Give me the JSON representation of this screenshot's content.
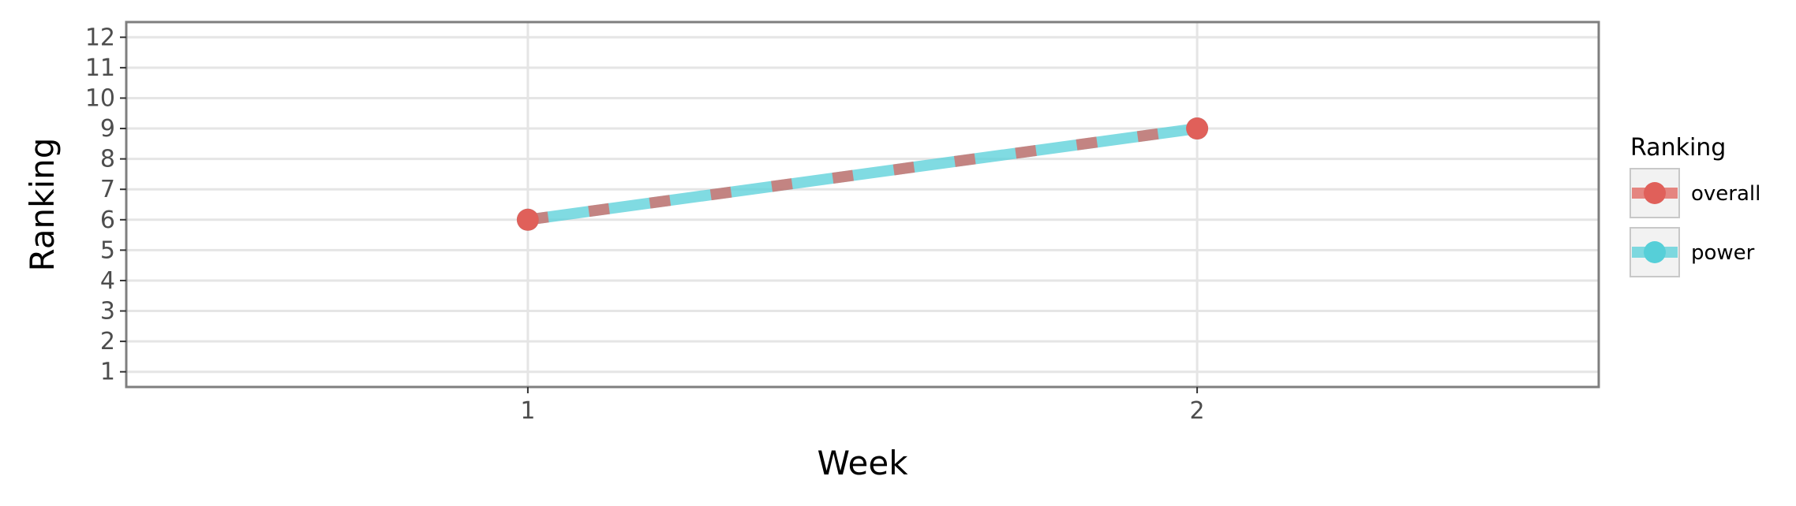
{
  "chart_data": {
    "type": "line",
    "title": "",
    "xlabel": "Week",
    "ylabel": "Ranking",
    "x_ticks": [
      "1",
      "2"
    ],
    "y_ticks": [
      "1",
      "2",
      "3",
      "4",
      "5",
      "6",
      "7",
      "8",
      "9",
      "10",
      "11",
      "12"
    ],
    "xlim": [
      0.4,
      2.6
    ],
    "ylim": [
      12.5,
      0.5
    ],
    "y_reversed": true,
    "grid": true,
    "legend": {
      "title": "Ranking",
      "placement": "right"
    },
    "series": [
      {
        "name": "overall",
        "color": "#e0605a",
        "linestyle": "dashed",
        "x": [
          1,
          2
        ],
        "y": [
          6,
          9
        ]
      },
      {
        "name": "power",
        "color": "#56cfd8",
        "linestyle": "solid",
        "x": [
          1,
          2
        ],
        "y": [
          6,
          9
        ]
      }
    ]
  }
}
